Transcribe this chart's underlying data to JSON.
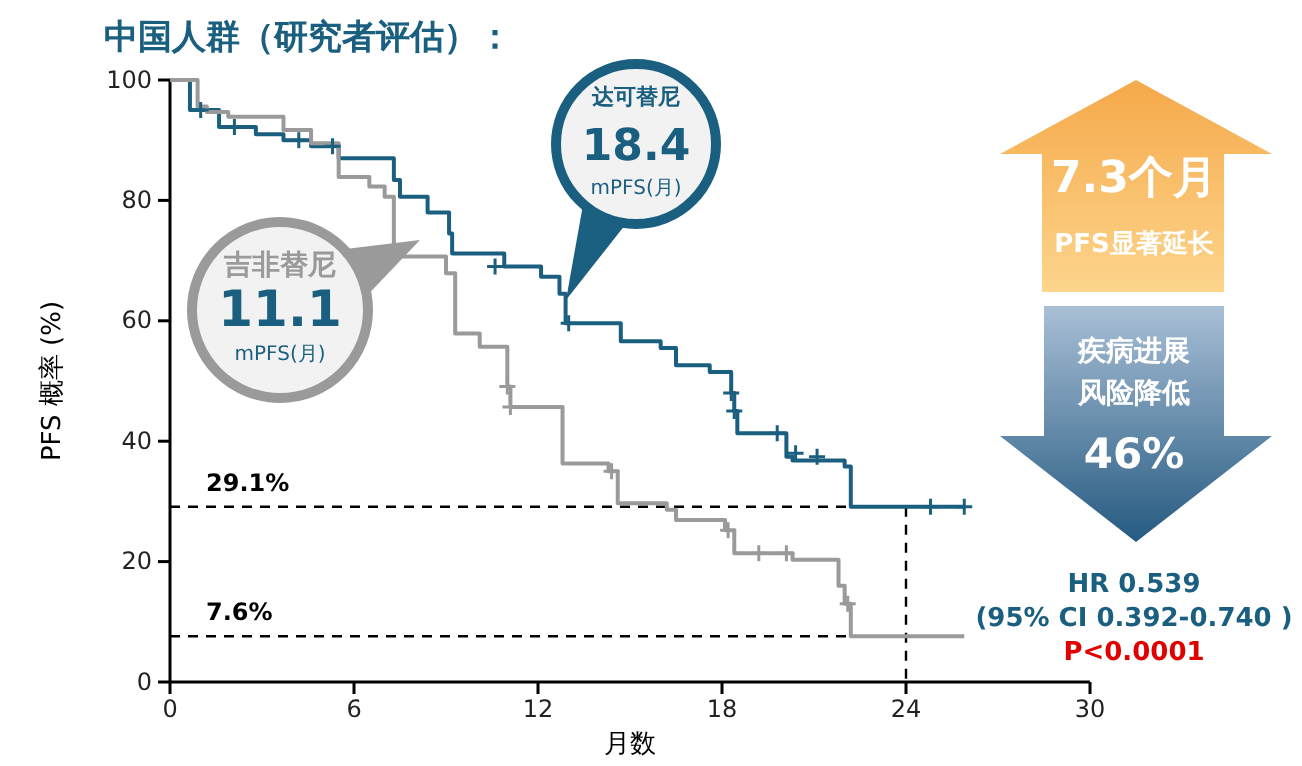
{
  "chart_data": {
    "type": "step",
    "title": "中国人群（研究者评估）：",
    "xlabel": "月数",
    "ylabel": "PFS 概率 (%)",
    "xlim": [
      0,
      30
    ],
    "ylim": [
      0,
      100
    ],
    "xticks": [
      0,
      6,
      12,
      18,
      24,
      30
    ],
    "yticks": [
      0,
      20,
      40,
      60,
      80,
      100
    ],
    "grid": false,
    "series": [
      {
        "name": "达可替尼",
        "color": "#1b5f80",
        "x": [
          0,
          0.65,
          1.6,
          2.8,
          3.7,
          4.6,
          5.5,
          7.3,
          7.5,
          8.4,
          9.1,
          9.2,
          10.9,
          12.1,
          12.7,
          12.9,
          14.7,
          16.0,
          16.5,
          17.6,
          18.3,
          18.4,
          18.5,
          20.1,
          20.3,
          22.0,
          22.2,
          25.9
        ],
        "values": [
          100,
          95,
          92.2,
          91,
          90,
          89,
          87,
          83.4,
          80.6,
          78,
          74.5,
          71.2,
          69,
          67.3,
          64.5,
          59.6,
          56.6,
          55.5,
          52.6,
          51.5,
          48,
          45,
          41.3,
          37.4,
          36.8,
          35.8,
          29.1,
          29.1
        ]
      },
      {
        "name": "吉非替尼",
        "color": "#9a9a9a",
        "x": [
          0,
          0.9,
          1.2,
          1.9,
          3.7,
          4.6,
          5.5,
          6.5,
          7.0,
          7.3,
          9.0,
          9.3,
          10.1,
          11.0,
          11.1,
          12.8,
          14.3,
          14.6,
          16.2,
          16.5,
          18.1,
          18.4,
          20.3,
          21.8,
          22.0,
          22.2,
          25.9
        ],
        "values": [
          100,
          95.6,
          94.7,
          93.9,
          91.7,
          89.5,
          83.9,
          82.3,
          80.6,
          70.7,
          67.9,
          57.9,
          55.7,
          49.1,
          45.7,
          36.3,
          35,
          29.7,
          28.6,
          26.9,
          25.2,
          21.4,
          20.3,
          16,
          13,
          7.6,
          7.6
        ]
      },
      {
        "type": "scatter",
        "marker": "cross",
        "color": "#1b5f80",
        "x": [
          1.0,
          2.1,
          4.2,
          5.3,
          10.6,
          13.0,
          18.3,
          18.4,
          19.8,
          20.4,
          21.1,
          24.8,
          25.9
        ],
        "values": [
          95,
          92.2,
          90,
          89,
          69,
          59.6,
          48,
          45,
          41.3,
          38,
          37.4,
          29.1,
          29.1
        ]
      },
      {
        "type": "scatter",
        "marker": "cross",
        "color": "#9a9a9a",
        "x": [
          11.0,
          11.1,
          14.4,
          18.2,
          19.2,
          20.1,
          22.1
        ],
        "values": [
          49.1,
          45.7,
          35,
          25.2,
          21.4,
          21.4,
          13
        ]
      }
    ],
    "ref_lines": [
      {
        "axis": "y",
        "value": 29.1,
        "label": "29.1%",
        "line_style": "dashed"
      },
      {
        "axis": "y",
        "value": 7.6,
        "label": "7.6%",
        "line_style": "dashed"
      },
      {
        "axis": "x",
        "value": 24,
        "line_style": "dashed"
      }
    ],
    "annotations": [
      "18.4",
      "mPFS(月)",
      "11.1",
      "mPFS(月)",
      "7.3个月",
      "PFS显著延长",
      "疾病进展",
      "风险降低",
      "46%",
      "HR 0.539",
      "(95% CI 0.392-0.740 )",
      "P<0.0001"
    ]
  }
}
